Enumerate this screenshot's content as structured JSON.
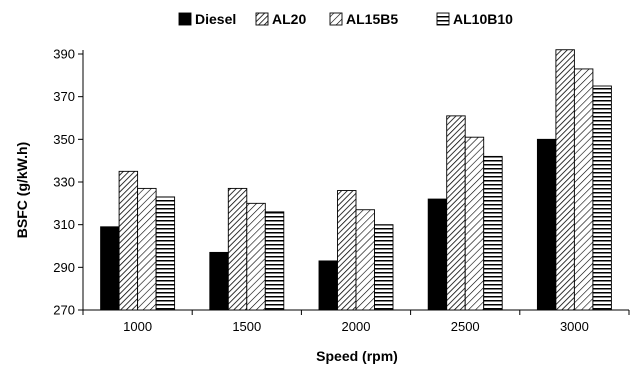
{
  "chart_data": {
    "type": "bar",
    "title": "",
    "xlabel": "Speed (rpm)",
    "ylabel": "BSFC (g/kW.h)",
    "categories": [
      "1000",
      "1500",
      "2000",
      "2500",
      "3000"
    ],
    "ylim": [
      270,
      390
    ],
    "yticks": [
      270,
      290,
      310,
      330,
      350,
      370,
      390
    ],
    "grid": false,
    "legend_position": "top",
    "series": [
      {
        "name": "Diesel",
        "values": [
          309,
          297,
          293,
          322,
          350
        ],
        "pattern": "solid",
        "color": "#000000"
      },
      {
        "name": "AL20",
        "values": [
          335,
          327,
          326,
          361,
          392
        ],
        "pattern": "diagonal-dense",
        "color": "#000000"
      },
      {
        "name": "AL15B5",
        "values": [
          327,
          320,
          317,
          351,
          383
        ],
        "pattern": "diagonal",
        "color": "#000000"
      },
      {
        "name": "AL10B10",
        "values": [
          323,
          316,
          310,
          342,
          375
        ],
        "pattern": "horizontal",
        "color": "#000000"
      }
    ]
  }
}
